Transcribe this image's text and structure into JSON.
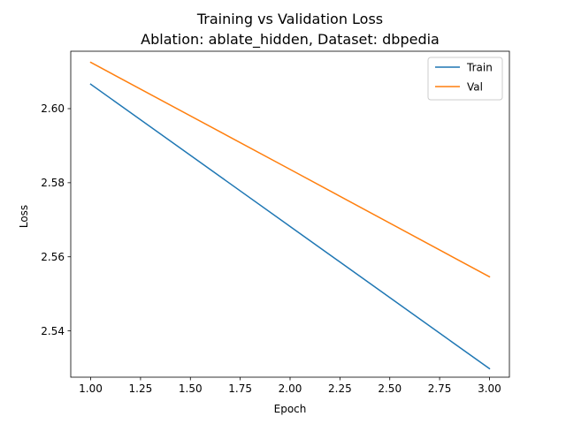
{
  "chart_data": {
    "type": "line",
    "title_line1": "Training vs Validation Loss",
    "title_line2": "Ablation: ablate_hidden, Dataset: dbpedia",
    "xlabel": "Epoch",
    "ylabel": "Loss",
    "xlim": [
      0.9,
      3.1
    ],
    "ylim": [
      2.5275,
      2.6155
    ],
    "x_ticks": [
      1.0,
      1.25,
      1.5,
      1.75,
      2.0,
      2.25,
      2.5,
      2.75,
      3.0
    ],
    "x_tick_labels": [
      "1.00",
      "1.25",
      "1.50",
      "1.75",
      "2.00",
      "2.25",
      "2.50",
      "2.75",
      "3.00"
    ],
    "y_ticks": [
      2.54,
      2.56,
      2.58,
      2.6
    ],
    "y_tick_labels": [
      "2.54",
      "2.56",
      "2.58",
      "2.60"
    ],
    "grid": false,
    "legend_position": "top-right",
    "series": [
      {
        "name": "Train",
        "color": "#1f77b4",
        "x": [
          1,
          2,
          3
        ],
        "y": [
          2.6066,
          2.5682,
          2.5298
        ]
      },
      {
        "name": "Val",
        "color": "#ff7f0e",
        "x": [
          1,
          2,
          3
        ],
        "y": [
          2.6125,
          2.5836,
          2.5546
        ]
      }
    ]
  }
}
